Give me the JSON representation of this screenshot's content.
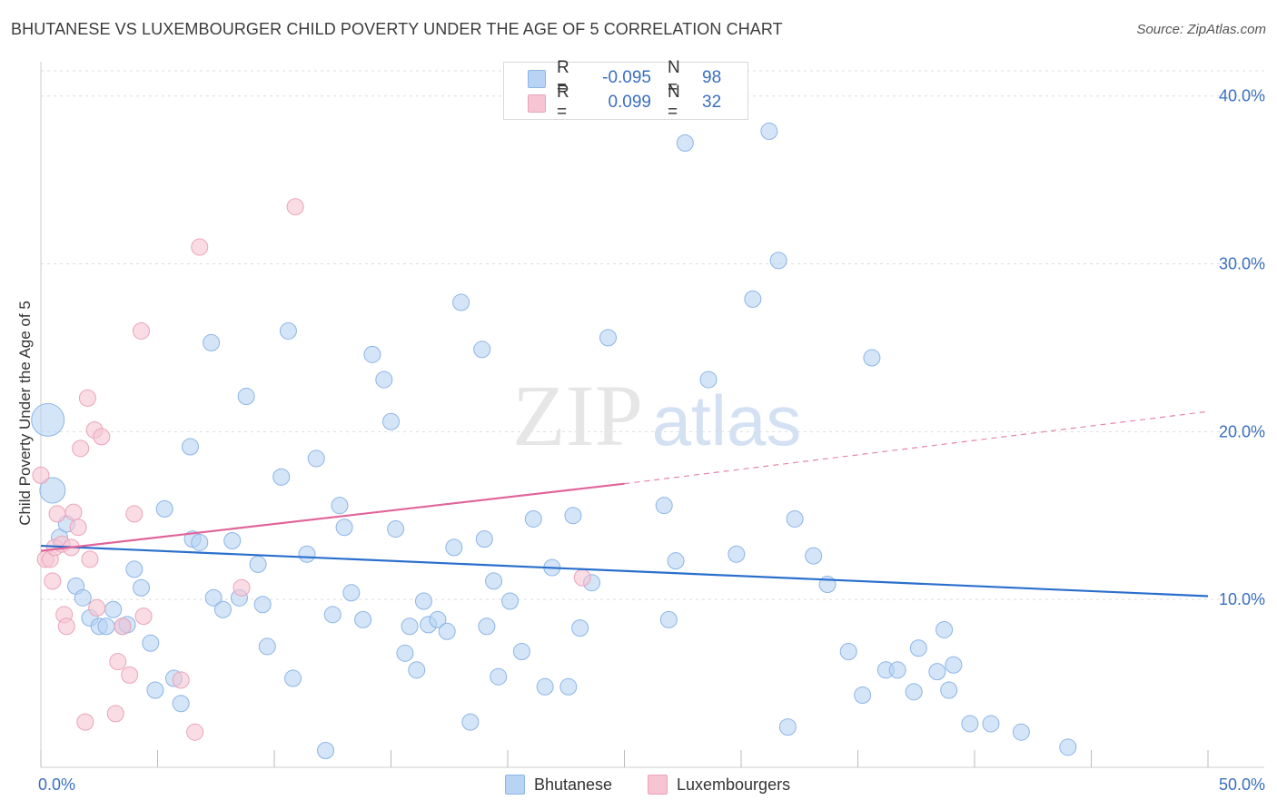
{
  "header": {
    "title": "BHUTANESE VS LUXEMBOURGER CHILD POVERTY UNDER THE AGE OF 5 CORRELATION CHART",
    "source": "Source: ZipAtlas.com"
  },
  "legend": {
    "rows": [
      {
        "r_label": "R =",
        "r_value": "-0.095",
        "n_label": "N =",
        "n_value": "98"
      },
      {
        "r_label": "R =",
        "r_value": "0.099",
        "n_label": "N =",
        "n_value": "32"
      }
    ]
  },
  "bottom_legend": {
    "items": [
      {
        "label": "Bhutanese"
      },
      {
        "label": "Luxembourgers"
      }
    ]
  },
  "watermark": {
    "zip": "ZIP",
    "atlas": "atlas"
  },
  "colors": {
    "blue_fill": "#b8d3f3",
    "blue_stroke": "#8db5e6",
    "blue_line": "#2a6fcc",
    "pink_fill": "#f7c4d3",
    "pink_stroke": "#eaa4ba",
    "pink_line": "#e0649a",
    "axis_text": "#3a6fc0",
    "grid": "#dddddd"
  },
  "chart_data": {
    "type": "scatter",
    "title": "BHUTANESE VS LUXEMBOURGER CHILD POVERTY UNDER THE AGE OF 5 CORRELATION CHART",
    "xlabel": "",
    "ylabel": "Child Poverty Under the Age of 5",
    "xlim": [
      0,
      50
    ],
    "ylim": [
      0,
      41.5
    ],
    "x_tick_labels": [
      "0.0%",
      "50.0%"
    ],
    "y_ticks": [
      10,
      20,
      30,
      40
    ],
    "y_tick_labels": [
      "10.0%",
      "20.0%",
      "30.0%",
      "40.0%"
    ],
    "grid": true,
    "legend_position": "top-center",
    "series": [
      {
        "name": "Bhutanese",
        "color": "#b8d3f3",
        "points": [
          [
            0.3,
            20.7
          ],
          [
            0.5,
            16.5
          ],
          [
            0.8,
            13.7
          ],
          [
            1.1,
            14.5
          ],
          [
            1.5,
            10.8
          ],
          [
            1.8,
            10.1
          ],
          [
            2.1,
            8.9
          ],
          [
            2.5,
            8.4
          ],
          [
            2.8,
            8.4
          ],
          [
            3.1,
            9.4
          ],
          [
            3.5,
            8.4
          ],
          [
            3.7,
            8.5
          ],
          [
            4.0,
            11.8
          ],
          [
            4.3,
            10.7
          ],
          [
            4.7,
            7.4
          ],
          [
            4.9,
            4.6
          ],
          [
            5.3,
            15.4
          ],
          [
            5.7,
            5.3
          ],
          [
            6.0,
            3.8
          ],
          [
            6.4,
            19.1
          ],
          [
            6.5,
            13.6
          ],
          [
            6.8,
            13.4
          ],
          [
            7.3,
            25.3
          ],
          [
            7.4,
            10.1
          ],
          [
            7.8,
            9.4
          ],
          [
            8.2,
            13.5
          ],
          [
            8.5,
            10.1
          ],
          [
            8.8,
            22.1
          ],
          [
            9.3,
            12.1
          ],
          [
            9.5,
            9.7
          ],
          [
            9.7,
            7.2
          ],
          [
            10.3,
            17.3
          ],
          [
            10.6,
            26.0
          ],
          [
            10.8,
            5.3
          ],
          [
            11.4,
            12.7
          ],
          [
            11.8,
            18.4
          ],
          [
            12.2,
            1.0
          ],
          [
            12.5,
            9.1
          ],
          [
            12.8,
            15.6
          ],
          [
            13.0,
            14.3
          ],
          [
            13.3,
            10.4
          ],
          [
            13.8,
            8.8
          ],
          [
            14.2,
            24.6
          ],
          [
            14.7,
            23.1
          ],
          [
            15.0,
            20.6
          ],
          [
            15.2,
            14.2
          ],
          [
            15.6,
            6.8
          ],
          [
            15.8,
            8.4
          ],
          [
            16.1,
            5.8
          ],
          [
            16.4,
            9.9
          ],
          [
            16.6,
            8.5
          ],
          [
            17.0,
            8.8
          ],
          [
            17.4,
            8.1
          ],
          [
            17.7,
            13.1
          ],
          [
            18.0,
            27.7
          ],
          [
            18.4,
            2.7
          ],
          [
            18.9,
            24.9
          ],
          [
            19.0,
            13.6
          ],
          [
            19.4,
            11.1
          ],
          [
            19.1,
            8.4
          ],
          [
            19.6,
            5.4
          ],
          [
            20.1,
            9.9
          ],
          [
            20.6,
            6.9
          ],
          [
            21.1,
            14.8
          ],
          [
            21.6,
            4.8
          ],
          [
            21.9,
            11.9
          ],
          [
            22.6,
            4.8
          ],
          [
            22.8,
            15.0
          ],
          [
            23.1,
            8.3
          ],
          [
            23.6,
            11.0
          ],
          [
            24.3,
            25.6
          ],
          [
            26.7,
            15.6
          ],
          [
            26.9,
            8.8
          ],
          [
            27.2,
            12.3
          ],
          [
            27.6,
            37.2
          ],
          [
            28.6,
            23.1
          ],
          [
            29.8,
            12.7
          ],
          [
            30.5,
            27.9
          ],
          [
            31.2,
            37.9
          ],
          [
            31.6,
            30.2
          ],
          [
            32.0,
            2.4
          ],
          [
            32.3,
            14.8
          ],
          [
            33.1,
            12.6
          ],
          [
            33.7,
            10.9
          ],
          [
            34.6,
            6.9
          ],
          [
            35.2,
            4.3
          ],
          [
            35.6,
            24.4
          ],
          [
            36.2,
            5.8
          ],
          [
            36.7,
            5.8
          ],
          [
            37.4,
            4.5
          ],
          [
            37.6,
            7.1
          ],
          [
            38.4,
            5.7
          ],
          [
            38.7,
            8.2
          ],
          [
            38.9,
            4.6
          ],
          [
            39.1,
            6.1
          ],
          [
            39.8,
            2.6
          ],
          [
            40.7,
            2.6
          ],
          [
            42.0,
            2.1
          ],
          [
            44.0,
            1.2
          ]
        ],
        "sizes": {
          "0.3,20.7": 18,
          "0.5,16.5": 14
        }
      },
      {
        "name": "Luxembourgers",
        "color": "#f7c4d3",
        "points": [
          [
            0.0,
            17.4
          ],
          [
            0.2,
            12.4
          ],
          [
            0.4,
            12.4
          ],
          [
            0.5,
            11.1
          ],
          [
            0.6,
            13.1
          ],
          [
            0.7,
            15.1
          ],
          [
            0.9,
            13.3
          ],
          [
            1.0,
            9.1
          ],
          [
            1.1,
            8.4
          ],
          [
            1.3,
            13.1
          ],
          [
            1.4,
            15.2
          ],
          [
            1.6,
            14.3
          ],
          [
            1.7,
            19.0
          ],
          [
            1.9,
            2.7
          ],
          [
            2.0,
            22.0
          ],
          [
            2.1,
            12.4
          ],
          [
            2.3,
            20.1
          ],
          [
            2.4,
            9.5
          ],
          [
            2.6,
            19.7
          ],
          [
            3.2,
            3.2
          ],
          [
            3.3,
            6.3
          ],
          [
            3.5,
            8.4
          ],
          [
            3.8,
            5.5
          ],
          [
            4.0,
            15.1
          ],
          [
            4.3,
            26.0
          ],
          [
            4.4,
            9.0
          ],
          [
            6.0,
            5.2
          ],
          [
            6.6,
            2.1
          ],
          [
            6.8,
            31.0
          ],
          [
            8.6,
            10.7
          ],
          [
            10.9,
            33.4
          ],
          [
            23.2,
            11.3
          ]
        ]
      }
    ],
    "trendlines": [
      {
        "series": "Bhutanese",
        "x": [
          0,
          50
        ],
        "y": [
          13.2,
          10.2
        ],
        "style": "solid"
      },
      {
        "series": "Luxembourgers",
        "x": [
          0,
          25
        ],
        "y": [
          12.9,
          16.9
        ],
        "style": "solid"
      },
      {
        "series": "Luxembourgers",
        "x": [
          25,
          50
        ],
        "y": [
          16.9,
          21.2
        ],
        "style": "dashed"
      }
    ]
  }
}
